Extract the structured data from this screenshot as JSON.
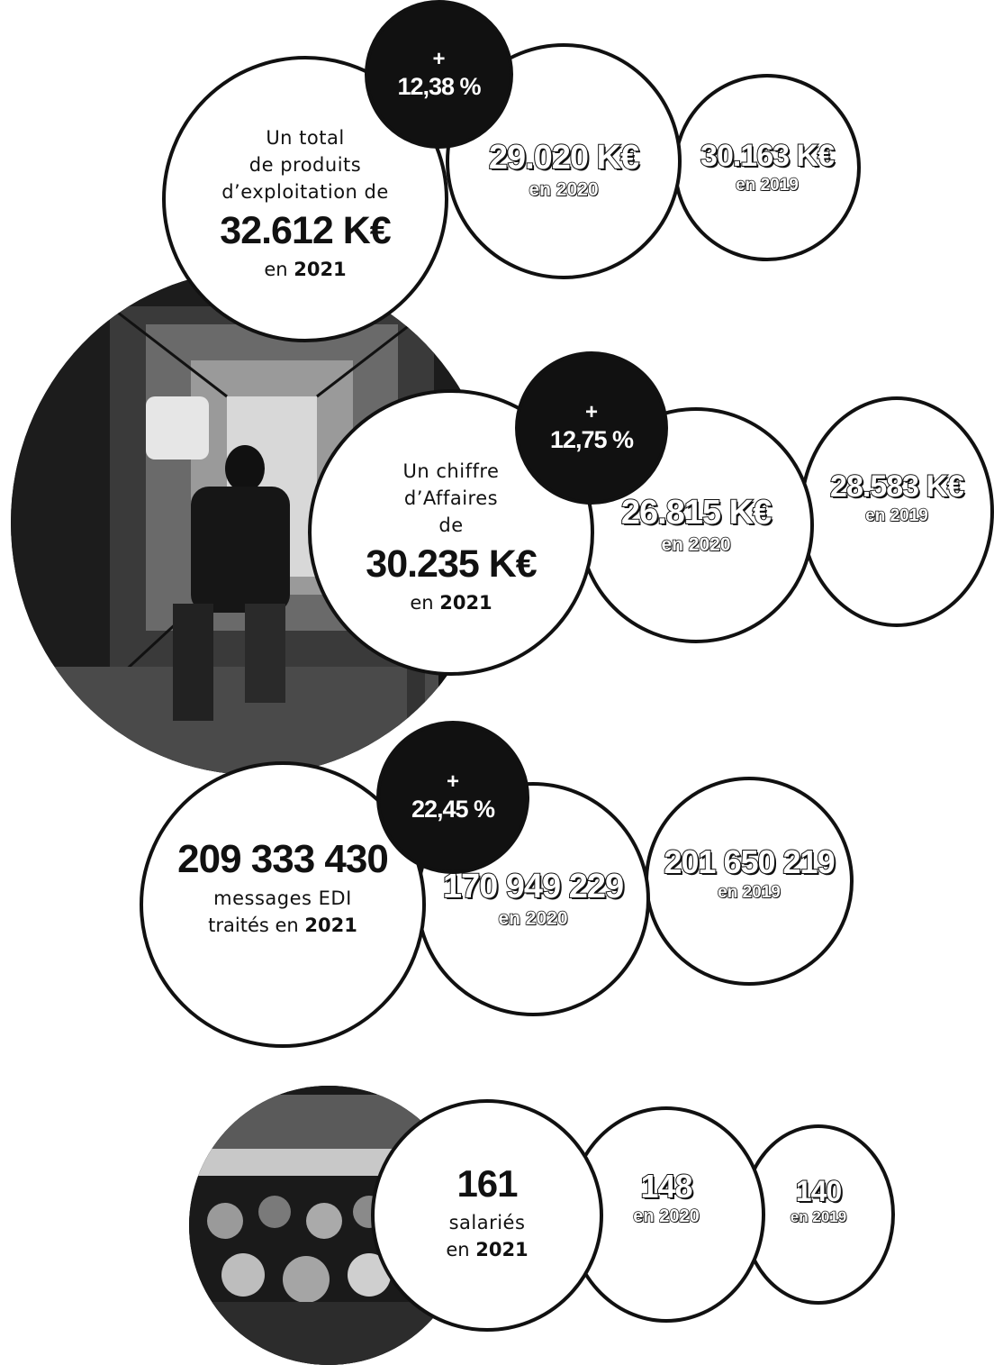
{
  "block1": {
    "main_lines": [
      "Un total",
      "de produits",
      "d’exploitation de"
    ],
    "main_value": "32.612 K€",
    "main_year_prefix": "en ",
    "main_year": "2021",
    "badge_plus": "+",
    "badge_pct": "12,38 %",
    "prev1_value": "29.020 K€",
    "prev1_year": "en 2020",
    "prev2_value": "30.163 K€",
    "prev2_year": "en 2019"
  },
  "block2": {
    "main_lines": [
      "Un chiffre",
      "d’Affaires",
      "de"
    ],
    "main_value": "30.235 K€",
    "main_year_prefix": "en ",
    "main_year": "2021",
    "badge_plus": "+",
    "badge_pct": "12,75 %",
    "prev1_value": "26.815 K€",
    "prev1_year": "en 2020",
    "prev2_value": "28.583 K€",
    "prev2_year": "en 2019"
  },
  "block3": {
    "main_value": "209 333 430",
    "main_lines": [
      "messages EDI"
    ],
    "main_year_prefix": "traités en ",
    "main_year": "2021",
    "badge_plus": "+",
    "badge_pct": "22,45 %",
    "prev1_value": "170 949 229",
    "prev1_year": "en 2020",
    "prev2_value": "201 650 219",
    "prev2_year": "en 2019"
  },
  "block4": {
    "main_value": "161",
    "main_lines": [
      "salariés"
    ],
    "main_year_prefix": "en ",
    "main_year": "2021",
    "prev1_value": "148",
    "prev1_year": "en 2020",
    "prev2_value": "140",
    "prev2_year": "en 2019"
  },
  "colors": {
    "ink": "#111111",
    "paper": "#ffffff"
  }
}
